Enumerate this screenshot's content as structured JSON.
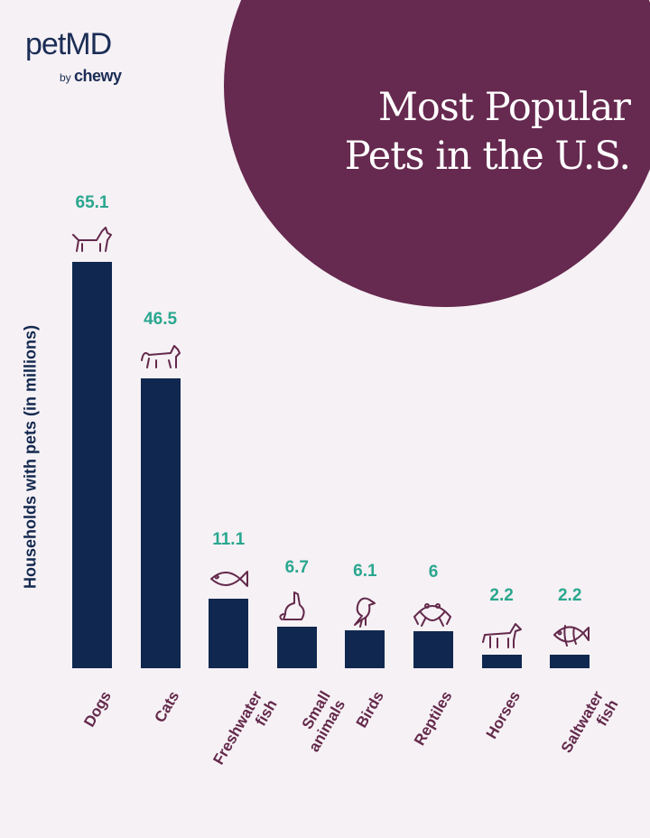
{
  "logo": {
    "brand": "petMD",
    "by": "by",
    "parent": "chewy"
  },
  "chart_data": {
    "type": "bar",
    "title": "Most Popular Pets in the U.S.",
    "title_lines": [
      "Most Popular",
      "Pets in the U.S."
    ],
    "xlabel": "",
    "ylabel": "Households with pets (in millions)",
    "categories": [
      "Dogs",
      "Cats",
      "Freshwater fish",
      "Small animals",
      "Birds",
      "Reptiles",
      "Horses",
      "Saltwater fish"
    ],
    "category_lines": [
      [
        "Dogs"
      ],
      [
        "Cats"
      ],
      [
        "Freshwater",
        "fish"
      ],
      [
        "Small",
        "animals"
      ],
      [
        "Birds"
      ],
      [
        "Reptiles"
      ],
      [
        "Horses"
      ],
      [
        "Saltwater",
        "fish"
      ]
    ],
    "values": [
      65.1,
      46.5,
      11.1,
      6.7,
      6.1,
      6,
      2.2,
      2.2
    ],
    "value_labels": [
      "65.1",
      "46.5",
      "11.1",
      "6.7",
      "6.1",
      "6",
      "2.2",
      "2.2"
    ],
    "icons": [
      "dog-icon",
      "cat-icon",
      "fish-icon",
      "rabbit-icon",
      "bird-icon",
      "frog-icon",
      "horse-icon",
      "tropical-fish-icon"
    ],
    "ylim": [
      0,
      65.1
    ],
    "grid": false,
    "colors": {
      "bar": "#10284f",
      "value": "#2aa78f",
      "label": "#63294b",
      "accent": "#66294f"
    }
  }
}
